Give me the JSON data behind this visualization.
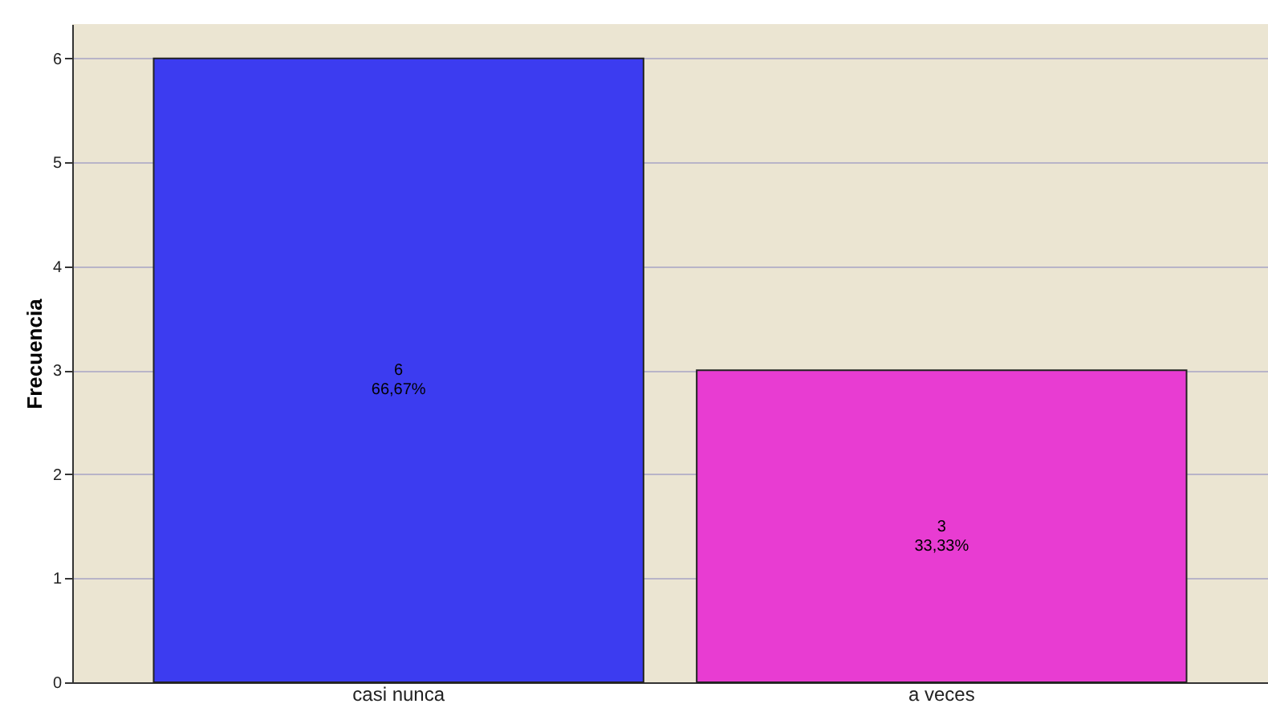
{
  "chart_data": {
    "type": "bar",
    "ylabel": "Frecuencia",
    "categories": [
      "casi nunca",
      "a veces"
    ],
    "values": [
      6,
      3
    ],
    "colors": [
      "#3c3cf0",
      "#e83cd2"
    ],
    "value_labels": [
      "6\n66,67%",
      "3\n33,33%"
    ],
    "ylim": [
      0,
      6.33
    ],
    "yticks": [
      0,
      1,
      2,
      3,
      4,
      5,
      6
    ],
    "grid": "y"
  }
}
